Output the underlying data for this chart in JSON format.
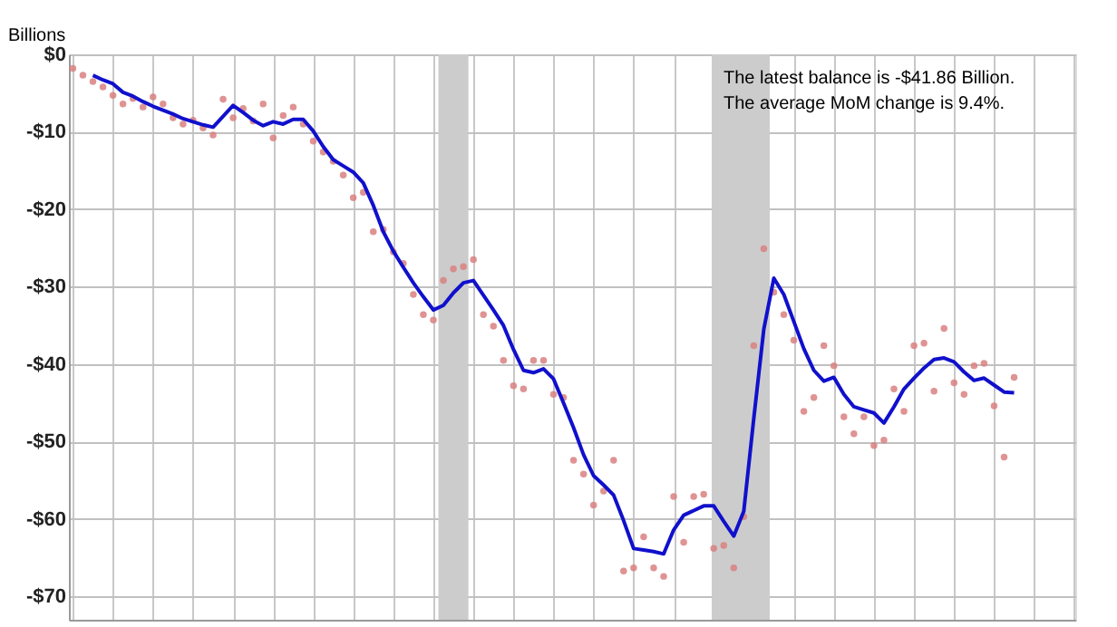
{
  "chart_data": {
    "type": "scatter",
    "ylabel": "Billions",
    "annotations": [
      "The latest balance is -$41.86  Billion.",
      "The average MoM change is 9.4%."
    ],
    "categories": [
      null,
      null,
      null,
      null,
      null,
      null,
      null,
      null,
      null,
      null,
      null,
      null,
      null,
      null,
      null,
      null,
      null,
      null,
      null,
      null,
      null,
      null,
      null,
      null,
      null,
      null,
      null,
      null,
      null,
      null,
      null,
      null,
      null,
      null,
      null,
      null,
      null,
      null,
      null,
      null,
      null,
      null,
      null,
      null,
      null,
      null,
      null,
      null,
      null,
      null,
      null,
      null,
      null,
      null,
      null,
      null,
      null,
      null,
      null,
      null,
      null,
      null,
      null,
      null,
      null,
      null,
      null,
      null,
      null,
      null,
      null,
      null,
      null,
      null,
      null,
      null,
      null,
      null,
      null,
      null,
      null,
      null,
      null,
      null,
      null,
      null,
      null,
      null,
      null,
      null,
      null,
      null,
      null,
      null,
      null
    ],
    "ylim": [
      -73,
      0
    ],
    "yticks": [
      {
        "value": 0,
        "label": "$0"
      },
      {
        "value": -10,
        "label": "-$10"
      },
      {
        "value": -20,
        "label": "-$20"
      },
      {
        "value": -30,
        "label": "-$30"
      },
      {
        "value": -40,
        "label": "-$40"
      },
      {
        "value": -50,
        "label": "-$50"
      },
      {
        "value": -60,
        "label": "-$60"
      },
      {
        "value": -70,
        "label": "-$70"
      }
    ],
    "tick_labels": "y",
    "grid": true,
    "series": [
      {
        "marker": "circle",
        "color": "#d98080",
        "values": [
          -1.8,
          -2.7,
          -3.5,
          -4.2,
          -5.3,
          -6.4,
          -5.7,
          -6.8,
          -5.5,
          -6.4,
          -8.2,
          -9.0,
          -8.5,
          -9.5,
          -10.4,
          -5.8,
          -8.2,
          -7.0,
          -8.6,
          -6.4,
          -10.8,
          -7.9,
          -6.8,
          -9.0,
          -11.2,
          -12.6,
          -13.8,
          -15.6,
          -18.5,
          -17.8,
          -22.9,
          -22.6,
          -25.5,
          -27.0,
          -31.0,
          -33.6,
          -34.3,
          -29.2,
          -27.7,
          -27.4,
          -26.5,
          -33.6,
          -35.1,
          -39.5,
          -42.8,
          -43.2,
          -39.5,
          -39.5,
          -43.9,
          -44.3,
          -52.4,
          -54.2,
          -58.2,
          -56.4,
          -52.4,
          -66.7,
          -66.3,
          -62.3,
          -66.3,
          -67.4,
          -57.1,
          -63.0,
          -57.1,
          -56.8,
          -63.8,
          -63.4,
          -66.3,
          -59.7,
          -37.6,
          -25.1,
          -30.7,
          -33.6,
          -36.9,
          -46.1,
          -44.3,
          -37.6,
          -40.2,
          -46.8,
          -49.0,
          -46.8,
          -50.5,
          -49.8,
          -43.2,
          -46.1,
          -37.6,
          -37.3,
          -43.5,
          -35.4,
          -42.4,
          -43.9,
          -40.2,
          -39.9,
          -45.4,
          -52.0,
          -41.7
        ]
      },
      {
        "type": "line",
        "line_style": "solid",
        "color": "#1010cc",
        "values": [
          null,
          null,
          -2.7,
          -3.3,
          -3.8,
          -4.9,
          -5.4,
          -6.1,
          -6.7,
          -7.2,
          -7.7,
          -8.3,
          -8.7,
          -9.1,
          -9.4,
          -8.0,
          -6.6,
          -7.5,
          -8.5,
          -9.2,
          -8.7,
          -9.0,
          -8.4,
          -8.4,
          -9.9,
          -11.9,
          -13.6,
          -14.4,
          -15.2,
          -16.6,
          -19.5,
          -22.9,
          -25.4,
          -27.5,
          -29.5,
          -31.3,
          -33.0,
          -32.4,
          -30.8,
          -29.5,
          -29.2,
          -31.1,
          -33.0,
          -35.0,
          -38.1,
          -40.8,
          -41.1,
          -40.6,
          -41.9,
          -45.0,
          -48.2,
          -51.7,
          -54.4,
          -55.6,
          -56.9,
          -60.2,
          -63.8,
          -64.0,
          -64.2,
          -64.5,
          -61.4,
          -59.5,
          -58.9,
          -58.3,
          -58.3,
          -60.3,
          -62.2,
          -59.0,
          -47.0,
          -35.5,
          -28.9,
          -31.0,
          -34.5,
          -38.0,
          -40.8,
          -42.2,
          -41.7,
          -43.9,
          -45.5,
          -45.9,
          -46.3,
          -47.6,
          -45.5,
          -43.2,
          -41.8,
          -40.5,
          -39.4,
          -39.2,
          -39.7,
          -41.0,
          -42.1,
          -41.8,
          -42.7,
          -43.6,
          -43.7
        ]
      }
    ]
  }
}
